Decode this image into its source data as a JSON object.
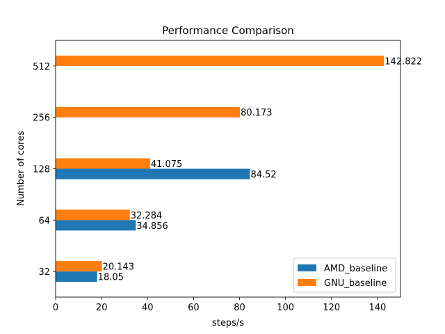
{
  "chart_data": {
    "type": "bar",
    "orientation": "horizontal",
    "title": "Performance Comparison",
    "xlabel": "steps/s",
    "ylabel": "Number of cores",
    "categories": [
      "32",
      "64",
      "128",
      "256",
      "512"
    ],
    "xlim": [
      0,
      150
    ],
    "xticks": [
      0,
      20,
      40,
      60,
      80,
      100,
      120,
      140
    ],
    "grid": false,
    "legend_position": "lower-right",
    "series": [
      {
        "name": "AMD_baseline",
        "color": "#1f77b4",
        "values": [
          18.05,
          34.856,
          84.52,
          null,
          null
        ],
        "labels": [
          "18.05",
          "34.856",
          "84.52",
          "",
          ""
        ]
      },
      {
        "name": "GNU_baseline",
        "color": "#ff7f0e",
        "values": [
          20.143,
          32.284,
          41.075,
          80.173,
          142.822
        ],
        "labels": [
          "20.143",
          "32.284",
          "41.075",
          "80.173",
          "142.822"
        ]
      }
    ]
  }
}
